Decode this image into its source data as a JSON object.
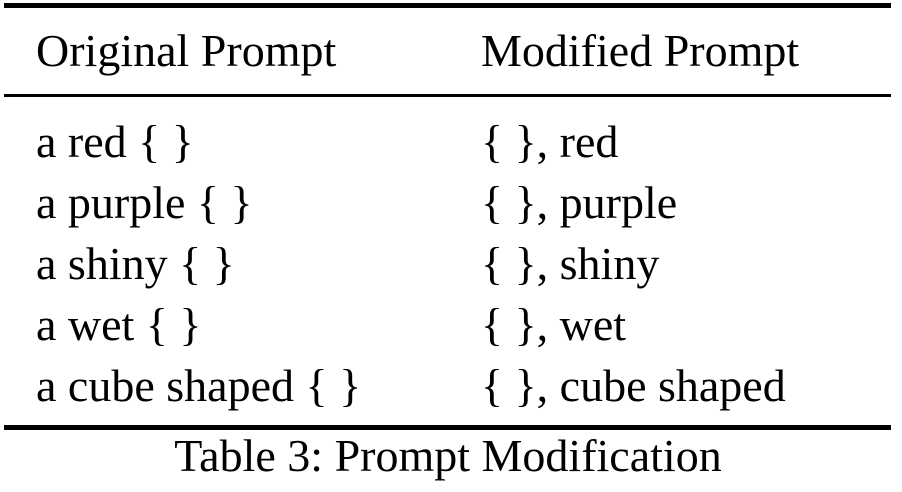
{
  "table": {
    "headers": [
      "Original Prompt",
      "Modified Prompt"
    ],
    "rows": [
      {
        "original": "a red { }",
        "modified": "{ }, red"
      },
      {
        "original": "a purple { }",
        "modified": "{ }, purple"
      },
      {
        "original": "a shiny { }",
        "modified": "{ }, shiny"
      },
      {
        "original": "a wet { }",
        "modified": "{ }, wet"
      },
      {
        "original": "a cube shaped { }",
        "modified": "{ }, cube shaped"
      }
    ],
    "caption": "Table 3: Prompt Modification"
  }
}
